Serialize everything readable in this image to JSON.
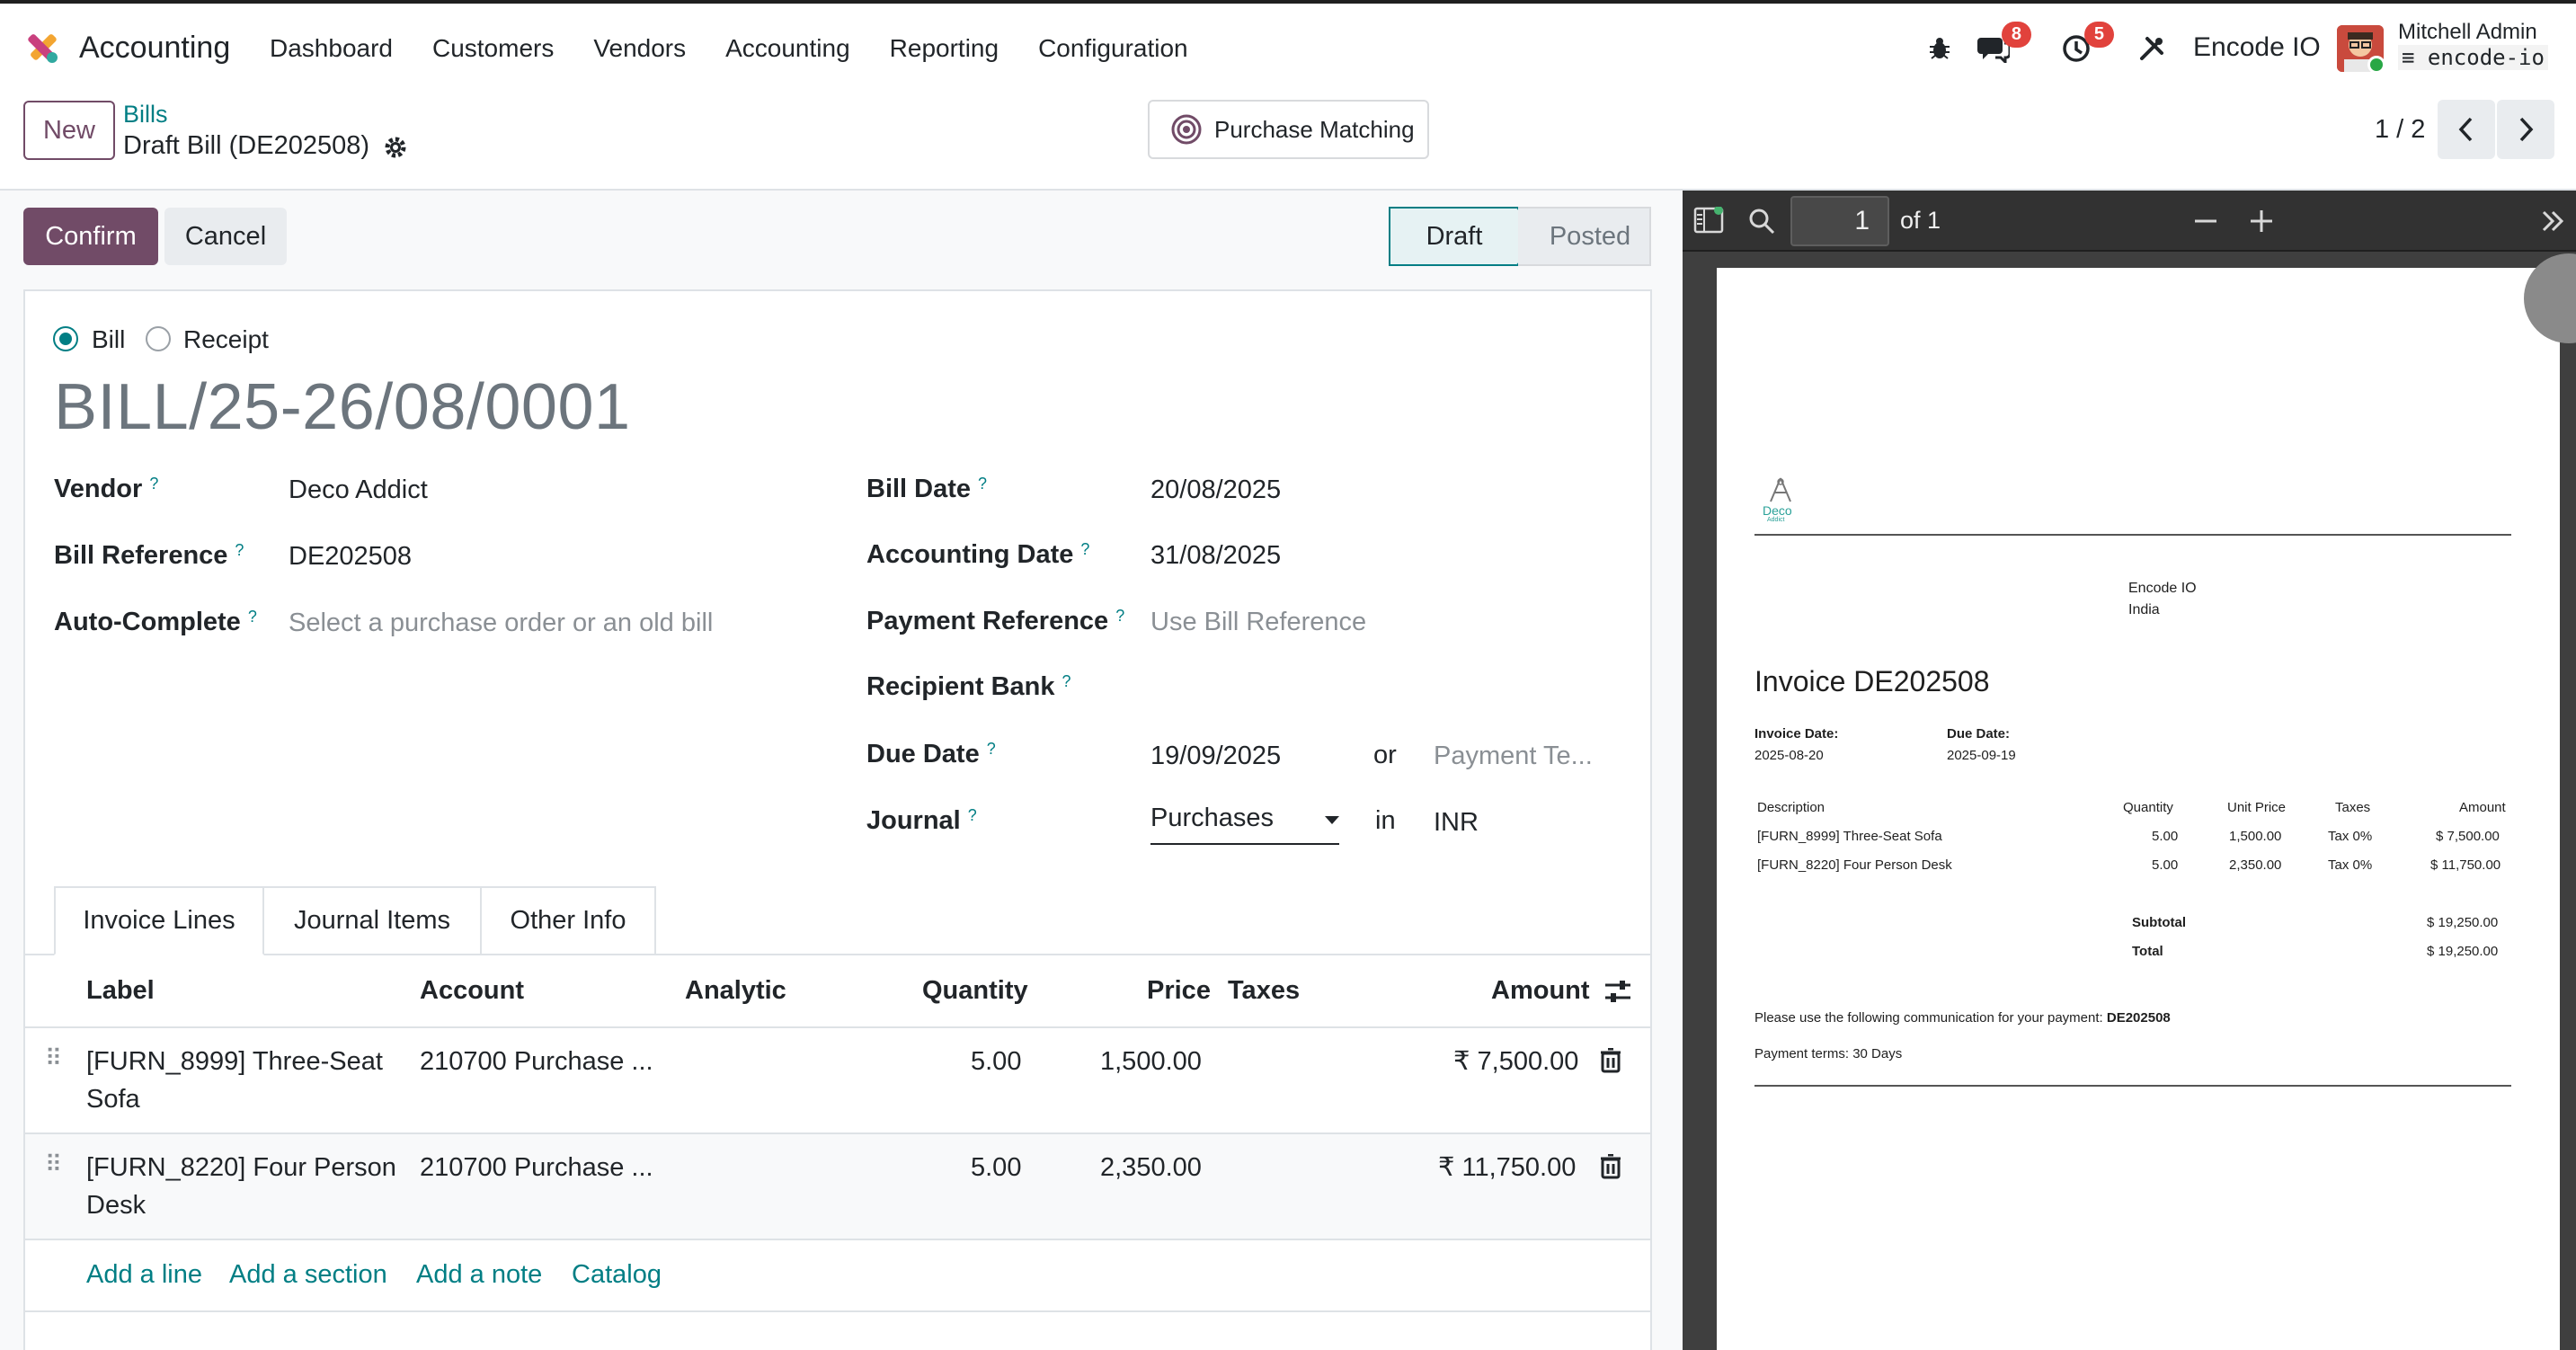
{
  "navbar": {
    "app_name": "Accounting",
    "menu": [
      "Dashboard",
      "Customers",
      "Vendors",
      "Accounting",
      "Reporting",
      "Configuration"
    ],
    "messages_badge": "8",
    "activities_badge": "5",
    "company": "Encode IO",
    "user_name": "Mitchell Admin",
    "user_db": "encode-io"
  },
  "control_panel": {
    "new_label": "New",
    "breadcrumb_parent": "Bills",
    "breadcrumb_current": "Draft Bill (DE202508)",
    "purchase_matching_label": "Purchase Matching",
    "pager_value": "1 / 2"
  },
  "status_bar": {
    "confirm_label": "Confirm",
    "cancel_label": "Cancel",
    "stages": [
      "Draft",
      "Posted"
    ],
    "active_stage": "Draft"
  },
  "form": {
    "move_type_options": [
      "Bill",
      "Receipt"
    ],
    "move_type_selected": "Bill",
    "title": "BILL/25-26/08/0001",
    "left_fields": {
      "vendor_label": "Vendor",
      "vendor_value": "Deco Addict",
      "bill_reference_label": "Bill Reference",
      "bill_reference_value": "DE202508",
      "auto_complete_label": "Auto-Complete",
      "auto_complete_placeholder": "Select a purchase order or an old bill"
    },
    "right_fields": {
      "bill_date_label": "Bill Date",
      "bill_date_value": "20/08/2025",
      "accounting_date_label": "Accounting Date",
      "accounting_date_value": "31/08/2025",
      "payment_reference_label": "Payment Reference",
      "payment_reference_placeholder": "Use Bill Reference",
      "recipient_bank_label": "Recipient Bank",
      "due_date_label": "Due Date",
      "due_date_value": "19/09/2025",
      "due_date_or": "or",
      "payment_terms_placeholder": "Payment Te...",
      "journal_label": "Journal",
      "journal_value": "Purchases",
      "journal_in": "in",
      "currency_value": "INR"
    },
    "help_marker": "?"
  },
  "tabs": [
    "Invoice Lines",
    "Journal Items",
    "Other Info"
  ],
  "active_tab": "Invoice Lines",
  "invoice_lines": {
    "columns": [
      "Label",
      "Account",
      "Analytic",
      "Quantity",
      "Price",
      "Taxes",
      "Amount"
    ],
    "rows": [
      {
        "label_line1": "[FURN_8999] Three-Seat",
        "label_line2": "Sofa",
        "account": "210700 Purchase ...",
        "analytic": "",
        "quantity": "5.00",
        "price": "1,500.00",
        "taxes": "",
        "amount": "₹ 7,500.00"
      },
      {
        "label_line1": "[FURN_8220] Four Person",
        "label_line2": "Desk",
        "account": "210700 Purchase ...",
        "analytic": "",
        "quantity": "5.00",
        "price": "2,350.00",
        "taxes": "",
        "amount": "₹ 11,750.00"
      }
    ],
    "add_links": [
      "Add a line",
      "Add a section",
      "Add a note",
      "Catalog"
    ]
  },
  "pdf_viewer": {
    "page_input": "1",
    "page_total": "of 1",
    "document": {
      "logo_text": "Deco",
      "logo_subtext": "Addict",
      "company_line1": "Encode IO",
      "company_line2": "India",
      "invoice_title": "Invoice DE202508",
      "invoice_date_label": "Invoice Date:",
      "invoice_date_value": "2025-08-20",
      "due_date_label": "Due Date:",
      "due_date_value": "2025-09-19",
      "columns": [
        "Description",
        "Quantity",
        "Unit Price",
        "Taxes",
        "Amount"
      ],
      "rows": [
        {
          "description": "[FURN_8999] Three-Seat Sofa",
          "quantity": "5.00",
          "unit_price": "1,500.00",
          "taxes": "Tax 0%",
          "amount": "$ 7,500.00"
        },
        {
          "description": "[FURN_8220] Four Person Desk",
          "quantity": "5.00",
          "unit_price": "2,350.00",
          "taxes": "Tax 0%",
          "amount": "$ 11,750.00"
        }
      ],
      "subtotal_label": "Subtotal",
      "subtotal_value": "$ 19,250.00",
      "total_label": "Total",
      "total_value": "$ 19,250.00",
      "communication_text": "Please use the following communication for your payment:",
      "communication_ref": "DE202508",
      "payment_terms": "Payment terms: 30 Days"
    }
  },
  "colors": {
    "primary": "#714b67",
    "link": "#017e84",
    "badge": "#e1423c"
  }
}
